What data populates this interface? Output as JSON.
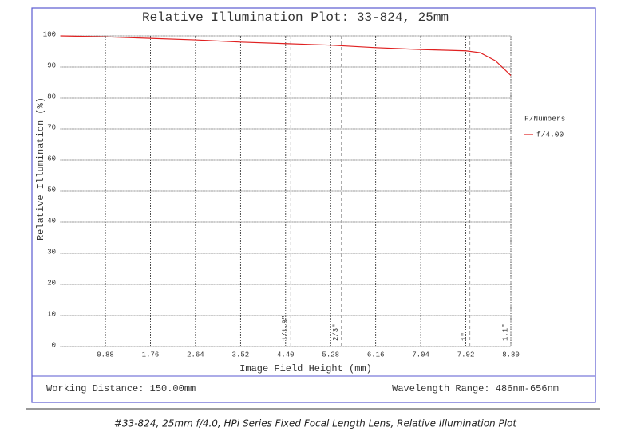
{
  "chart_data": {
    "type": "line",
    "title": "Relative Illumination Plot: 33-824, 25mm",
    "xlabel": "Image Field Height (mm)",
    "ylabel": "Relative Illumination (%)",
    "x": [
      0,
      0.88,
      1.76,
      2.64,
      3.52,
      4.4,
      5.28,
      6.16,
      7.04,
      7.92,
      8.2,
      8.5,
      8.8
    ],
    "series": [
      {
        "name": "f/4.00",
        "color": "#e02020",
        "values": [
          100,
          99.7,
          99.2,
          98.7,
          98.0,
          97.5,
          97.0,
          96.2,
          95.6,
          95.2,
          94.6,
          92.0,
          87.3
        ]
      }
    ],
    "legend_title": "F/Numbers",
    "legend": "right",
    "xlim": [
      0,
      8.8
    ],
    "ylim": [
      0,
      100
    ],
    "xticks": [
      0.88,
      1.76,
      2.64,
      3.52,
      {
        "value": 4.4,
        "label": "4.40"
      },
      5.28,
      6.16,
      7.04,
      7.92,
      {
        "value": 8.8,
        "label": "8.80"
      }
    ],
    "yticks": [
      0,
      10,
      20,
      30,
      40,
      50,
      60,
      70,
      80,
      90,
      100
    ],
    "grid": true,
    "annotations": [
      {
        "x": 4.5,
        "label": "1/1.8\""
      },
      {
        "x": 5.49,
        "label": "2/3\""
      },
      {
        "x": 8.0,
        "label": "1\""
      },
      {
        "x": 8.8,
        "label": "1.1\""
      }
    ]
  },
  "footer": {
    "left": "Working Distance: 150.00mm",
    "right": "Wavelength Range: 486nm-656nm"
  },
  "caption": "#33-824, 25mm f/4.0, HPi Series Fixed Focal Length Lens, Relative Illumination Plot"
}
